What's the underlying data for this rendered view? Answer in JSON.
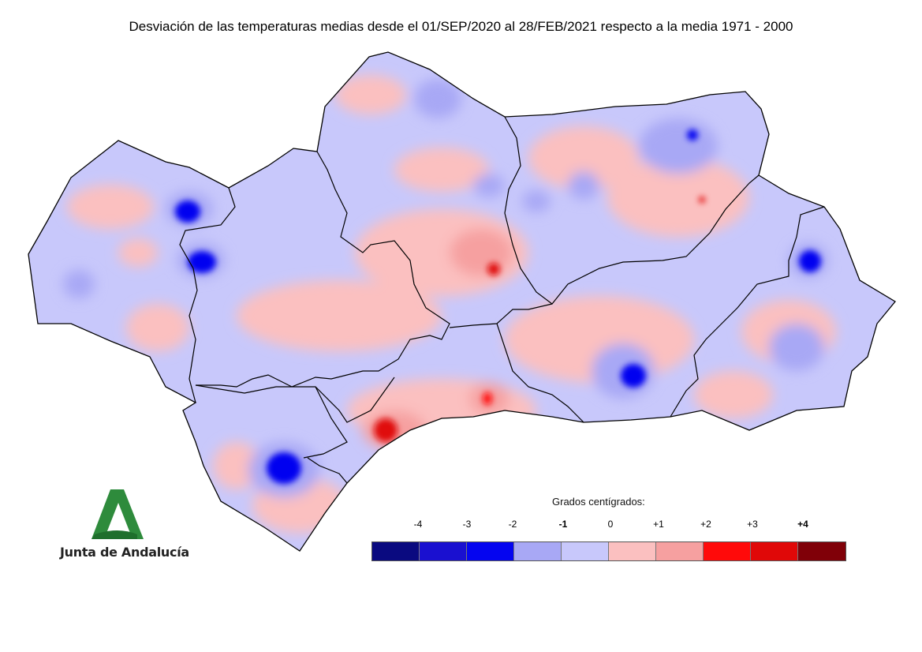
{
  "title": "Desviación de las temperaturas medias desde el 01/SEP/2020 al 28/FEB/2021 respecto a la media 1971 - 2000",
  "logo": {
    "text": "Junta de Andalucía",
    "color": "#2e8b3c"
  },
  "legend": {
    "title": "Grados centígrados:",
    "labels": [
      "-4",
      "-3",
      "-2",
      "-1",
      "0",
      "+1",
      "+2",
      "+3",
      "+4"
    ],
    "bold_labels": [
      "-1",
      "+4"
    ],
    "colors": [
      "#0a0a80",
      "#1a10d0",
      "#0505f0",
      "#a8a8f5",
      "#c8c8fb",
      "#fbc0c0",
      "#f6a0a0",
      "#ff0a0a",
      "#e00808",
      "#800008"
    ]
  },
  "map": {
    "region": "Andalucía",
    "dominant_colors": {
      "negative": "#c8c8fb",
      "positive": "#fbc0c0",
      "strong_negative": "#0505f0",
      "strong_positive": "#e00808"
    }
  }
}
